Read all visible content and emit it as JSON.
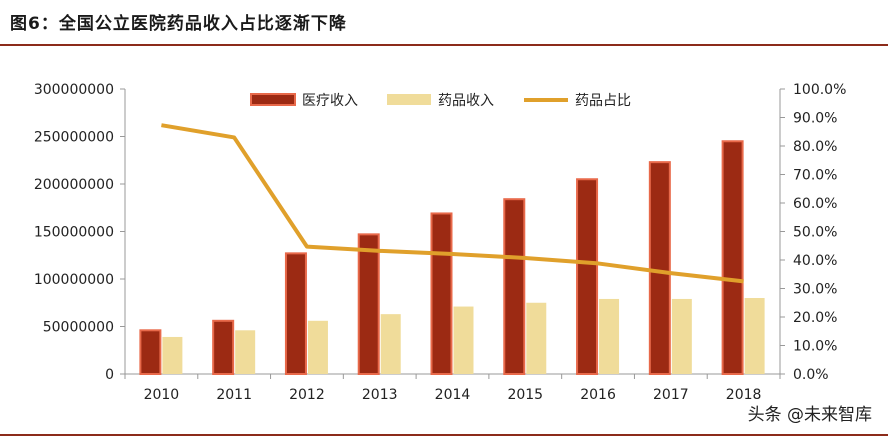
{
  "figure_title": "图6：全国公立医院药品收入占比逐渐下降",
  "watermark": "头条 @未来智库",
  "colors": {
    "medical_income": "#9c2a13",
    "medical_income_border": "#e8694a",
    "drug_income": "#f0dc9a",
    "drug_share": "#e0a02b",
    "title_rule": "#8c2b1a",
    "axis": "#999999"
  },
  "chart_data": {
    "type": "bar",
    "categories": [
      "2010",
      "2011",
      "2012",
      "2013",
      "2014",
      "2015",
      "2016",
      "2017",
      "2018"
    ],
    "series": [
      {
        "name": "医疗收入",
        "type": "bar",
        "axis": "left",
        "values": [
          46000000,
          56000000,
          127000000,
          147000000,
          169000000,
          184000000,
          205000000,
          223000000,
          245000000
        ]
      },
      {
        "name": "药品收入",
        "type": "bar",
        "axis": "left",
        "values": [
          39000000,
          46000000,
          56000000,
          63000000,
          71000000,
          75000000,
          79000000,
          79000000,
          80000000
        ]
      },
      {
        "name": "药品占比",
        "type": "line",
        "axis": "right",
        "values": [
          87.3,
          83.0,
          44.7,
          43.2,
          42.1,
          40.7,
          38.8,
          35.4,
          32.5
        ]
      }
    ],
    "y_left": {
      "min": 0,
      "max": 300000000,
      "step": 50000000,
      "ticks": [
        "0",
        "50000000",
        "100000000",
        "150000000",
        "200000000",
        "250000000",
        "300000000"
      ]
    },
    "y_right": {
      "min": 0,
      "max": 100,
      "step": 10,
      "ticks": [
        "0.0%",
        "10.0%",
        "20.0%",
        "30.0%",
        "40.0%",
        "50.0%",
        "60.0%",
        "70.0%",
        "80.0%",
        "90.0%",
        "100.0%"
      ]
    },
    "legend": "top-center",
    "grid": false
  }
}
